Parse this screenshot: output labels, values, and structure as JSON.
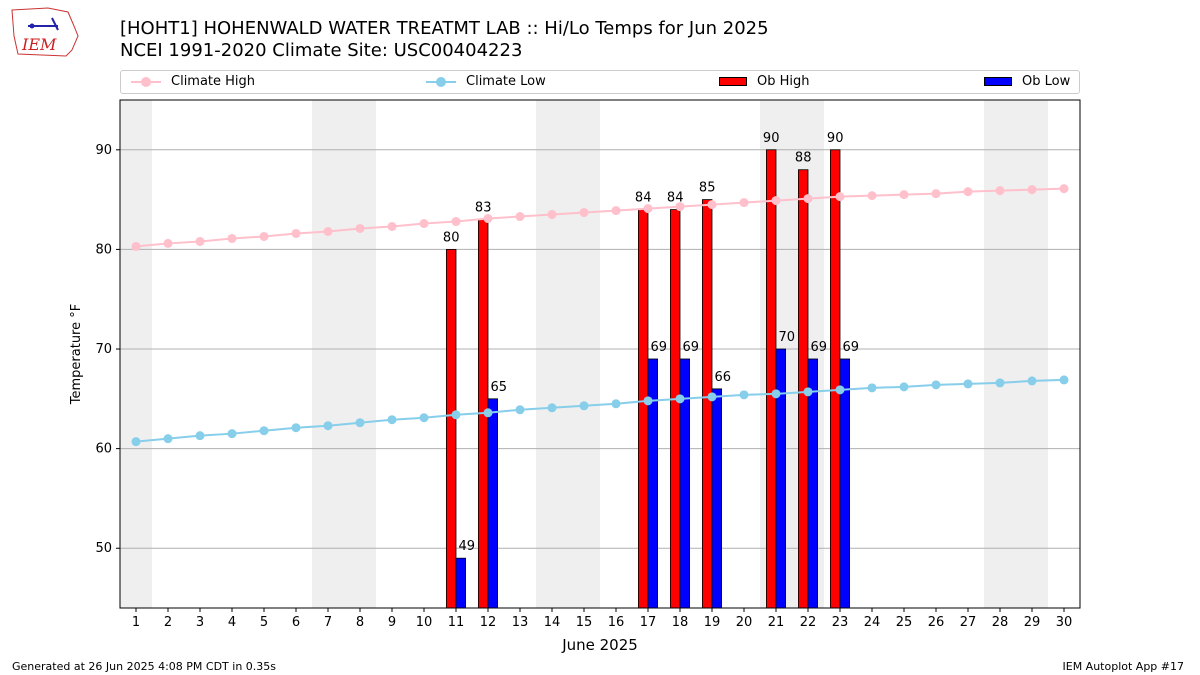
{
  "header": {
    "title": "[HOHT1] HOHENWALD WATER TREATMT LAB :: Hi/Lo Temps for Jun 2025",
    "subtitle": "NCEI 1991-2020 Climate Site: USC00404223",
    "logo_text": "IEM"
  },
  "footer": {
    "generated": "Generated at 26 Jun 2025 4:08 PM CDT in 0.35s",
    "app": "IEM Autoplot App #17"
  },
  "colors": {
    "climate_high": "#ffc0cb",
    "climate_low": "#87ceeb",
    "ob_high": "#ff0000",
    "ob_low": "#0000ff",
    "weekend_shade": "#efefef",
    "grid": "#b0b0b0"
  },
  "chart_data": {
    "type": "bar",
    "xlabel": "June 2025",
    "ylabel": "Temperature °F",
    "xlim": [
      0.5,
      30.5
    ],
    "ylim": [
      44,
      95
    ],
    "yticks": [
      50,
      60,
      70,
      80,
      90
    ],
    "grid": "horizontal",
    "legend_position": "top",
    "days": [
      1,
      2,
      3,
      4,
      5,
      6,
      7,
      8,
      9,
      10,
      11,
      12,
      13,
      14,
      15,
      16,
      17,
      18,
      19,
      20,
      21,
      22,
      23,
      24,
      25,
      26,
      27,
      28,
      29,
      30
    ],
    "weekend_days": [
      1,
      7,
      8,
      14,
      15,
      21,
      22,
      28,
      29
    ],
    "series": [
      {
        "name": "Climate High",
        "kind": "line",
        "values": [
          80.3,
          80.6,
          80.8,
          81.1,
          81.3,
          81.6,
          81.8,
          82.1,
          82.3,
          82.6,
          82.8,
          83.1,
          83.3,
          83.5,
          83.7,
          83.9,
          84.1,
          84.3,
          84.5,
          84.7,
          84.9,
          85.1,
          85.3,
          85.4,
          85.5,
          85.6,
          85.8,
          85.9,
          86.0,
          86.1
        ]
      },
      {
        "name": "Climate Low",
        "kind": "line",
        "values": [
          60.7,
          61.0,
          61.3,
          61.5,
          61.8,
          62.1,
          62.3,
          62.6,
          62.9,
          63.1,
          63.4,
          63.6,
          63.9,
          64.1,
          64.3,
          64.5,
          64.8,
          65.0,
          65.2,
          65.4,
          65.5,
          65.7,
          65.9,
          66.1,
          66.2,
          66.4,
          66.5,
          66.6,
          66.8,
          66.9
        ]
      },
      {
        "name": "Ob High",
        "kind": "bar",
        "points": [
          [
            11,
            80
          ],
          [
            12,
            83
          ],
          [
            17,
            84
          ],
          [
            18,
            84
          ],
          [
            19,
            85
          ],
          [
            21,
            90
          ],
          [
            22,
            88
          ],
          [
            23,
            90
          ]
        ]
      },
      {
        "name": "Ob Low",
        "kind": "bar",
        "points": [
          [
            11,
            49
          ],
          [
            12,
            65
          ],
          [
            17,
            69
          ],
          [
            18,
            69
          ],
          [
            19,
            66
          ],
          [
            21,
            70
          ],
          [
            22,
            69
          ],
          [
            23,
            69
          ]
        ]
      }
    ]
  }
}
